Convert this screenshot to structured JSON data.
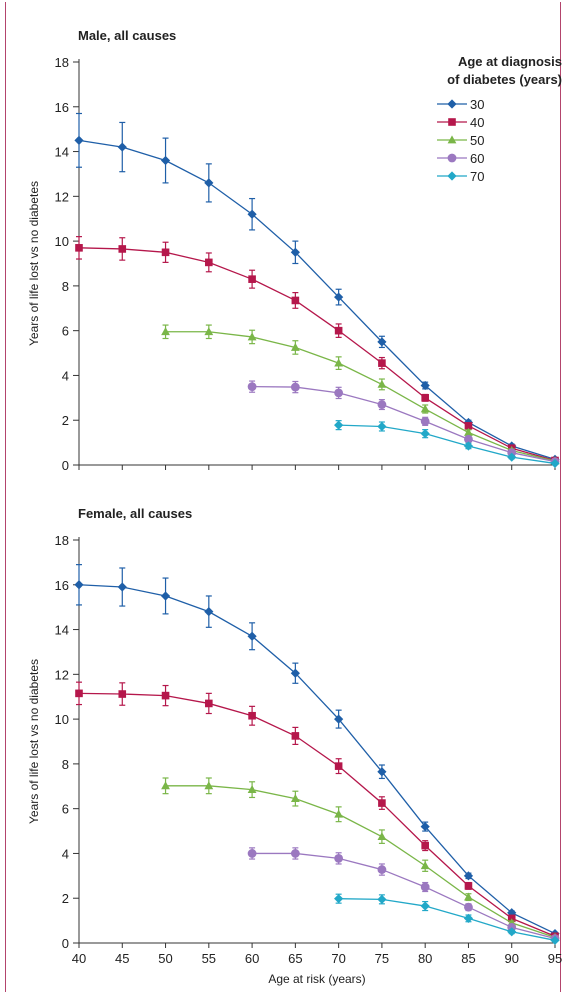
{
  "chart_data": [
    {
      "type": "line",
      "title": "Male, all causes",
      "xlabel": "",
      "ylabel": "Years of life lost vs no diabetes",
      "x_ticks": [
        40,
        45,
        50,
        55,
        60,
        65,
        70,
        75,
        80,
        85,
        90,
        95
      ],
      "y_ticks": [
        0,
        2,
        4,
        6,
        8,
        10,
        12,
        14,
        16,
        18
      ],
      "xlim": [
        40,
        95
      ],
      "ylim": [
        0,
        18
      ],
      "legend": {
        "title_lines": [
          "Age at diagnosis",
          "of diabetes (years)"
        ],
        "placement": "top-right"
      },
      "series": [
        {
          "name": "30",
          "color": "#1f5fa8",
          "marker": "diamond",
          "x": [
            40,
            45,
            50,
            55,
            60,
            65,
            70,
            75,
            80,
            85,
            90,
            95
          ],
          "y": [
            14.5,
            14.2,
            13.6,
            12.6,
            11.2,
            9.5,
            7.5,
            5.5,
            3.55,
            1.9,
            0.85,
            0.25
          ],
          "err": [
            1.2,
            1.1,
            1.0,
            0.85,
            0.7,
            0.5,
            0.35,
            0.25,
            0.15,
            0.1,
            0.08,
            0.05
          ]
        },
        {
          "name": "40",
          "color": "#b5174b",
          "marker": "square",
          "x": [
            40,
            45,
            50,
            55,
            60,
            65,
            70,
            75,
            80,
            85,
            90,
            95
          ],
          "y": [
            9.7,
            9.65,
            9.5,
            9.05,
            8.3,
            7.35,
            6.0,
            4.55,
            3.0,
            1.75,
            0.75,
            0.2
          ],
          "err": [
            0.5,
            0.5,
            0.45,
            0.42,
            0.4,
            0.35,
            0.3,
            0.25,
            0.15,
            0.1,
            0.07,
            0.05
          ]
        },
        {
          "name": "50",
          "color": "#7ab648",
          "marker": "triangle",
          "x": [
            50,
            55,
            60,
            65,
            70,
            75,
            80,
            85,
            90,
            95
          ],
          "y": [
            5.95,
            5.95,
            5.72,
            5.25,
            4.55,
            3.6,
            2.5,
            1.45,
            0.65,
            0.18
          ],
          "err": [
            0.3,
            0.3,
            0.3,
            0.3,
            0.28,
            0.24,
            0.18,
            0.12,
            0.07,
            0.05
          ]
        },
        {
          "name": "60",
          "color": "#9b78c0",
          "marker": "circle",
          "x": [
            60,
            65,
            70,
            75,
            80,
            85,
            90,
            95
          ],
          "y": [
            3.5,
            3.48,
            3.22,
            2.7,
            1.95,
            1.15,
            0.55,
            0.15
          ],
          "err": [
            0.25,
            0.25,
            0.25,
            0.22,
            0.18,
            0.12,
            0.07,
            0.05
          ]
        },
        {
          "name": "70",
          "color": "#22a8c8",
          "marker": "diamond",
          "x": [
            70,
            75,
            80,
            85,
            90,
            95
          ],
          "y": [
            1.78,
            1.72,
            1.4,
            0.85,
            0.35,
            0.07
          ],
          "err": [
            0.2,
            0.2,
            0.18,
            0.12,
            0.07,
            0.04
          ]
        }
      ]
    },
    {
      "type": "line",
      "title": "Female, all causes",
      "xlabel": "Age at risk (years)",
      "ylabel": "Years of life lost vs no diabetes",
      "x_ticks": [
        40,
        45,
        50,
        55,
        60,
        65,
        70,
        75,
        80,
        85,
        90,
        95
      ],
      "y_ticks": [
        0,
        2,
        4,
        6,
        8,
        10,
        12,
        14,
        16,
        18
      ],
      "xlim": [
        40,
        95
      ],
      "ylim": [
        0,
        18
      ],
      "series": [
        {
          "name": "30",
          "color": "#1f5fa8",
          "marker": "diamond",
          "x": [
            40,
            45,
            50,
            55,
            60,
            65,
            70,
            75,
            80,
            85,
            90,
            95
          ],
          "y": [
            16.0,
            15.9,
            15.5,
            14.8,
            13.7,
            12.05,
            10.0,
            7.65,
            5.2,
            3.0,
            1.35,
            0.42
          ],
          "err": [
            0.9,
            0.85,
            0.8,
            0.7,
            0.6,
            0.45,
            0.4,
            0.3,
            0.2,
            0.12,
            0.08,
            0.05
          ]
        },
        {
          "name": "40",
          "color": "#b5174b",
          "marker": "square",
          "x": [
            40,
            45,
            50,
            55,
            60,
            65,
            70,
            75,
            80,
            85,
            90,
            95
          ],
          "y": [
            11.15,
            11.12,
            11.05,
            10.7,
            10.15,
            9.25,
            7.9,
            6.25,
            4.35,
            2.55,
            1.1,
            0.3
          ],
          "err": [
            0.5,
            0.5,
            0.45,
            0.45,
            0.42,
            0.38,
            0.33,
            0.28,
            0.22,
            0.15,
            0.08,
            0.05
          ]
        },
        {
          "name": "50",
          "color": "#7ab648",
          "marker": "triangle",
          "x": [
            50,
            55,
            60,
            65,
            70,
            75,
            80,
            85,
            90,
            95
          ],
          "y": [
            7.02,
            7.02,
            6.85,
            6.45,
            5.75,
            4.75,
            3.45,
            2.05,
            0.9,
            0.25
          ],
          "err": [
            0.35,
            0.35,
            0.35,
            0.33,
            0.33,
            0.3,
            0.25,
            0.15,
            0.08,
            0.05
          ]
        },
        {
          "name": "60",
          "color": "#9b78c0",
          "marker": "circle",
          "x": [
            60,
            65,
            70,
            75,
            80,
            85,
            90,
            95
          ],
          "y": [
            4.0,
            4.0,
            3.78,
            3.28,
            2.5,
            1.6,
            0.7,
            0.2
          ],
          "err": [
            0.25,
            0.25,
            0.25,
            0.25,
            0.2,
            0.15,
            0.08,
            0.05
          ]
        },
        {
          "name": "70",
          "color": "#22a8c8",
          "marker": "diamond",
          "x": [
            70,
            75,
            80,
            85,
            90,
            95
          ],
          "y": [
            1.98,
            1.95,
            1.65,
            1.1,
            0.5,
            0.12
          ],
          "err": [
            0.2,
            0.2,
            0.2,
            0.15,
            0.08,
            0.04
          ]
        }
      ]
    }
  ]
}
